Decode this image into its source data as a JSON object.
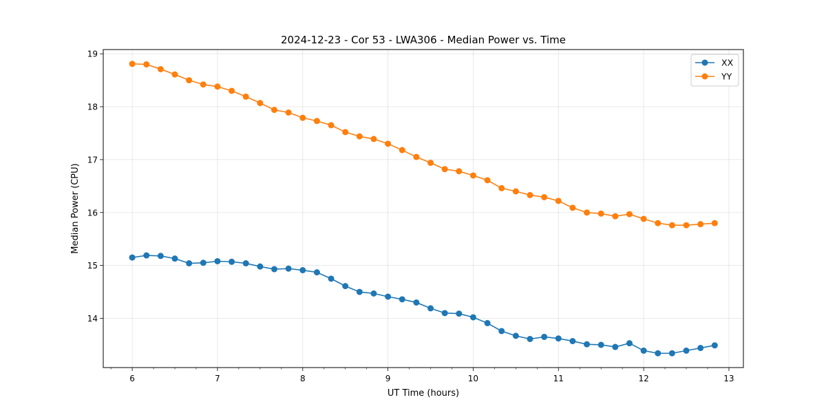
{
  "chart_data": {
    "type": "line",
    "title": "2024-12-23 - Cor 53 - LWA306 - Median Power vs. Time",
    "xlabel": "UT Time (hours)",
    "ylabel": "Median Power (CPU)",
    "xlim": [
      5.66,
      13.17
    ],
    "ylim": [
      13.07,
      19.08
    ],
    "xticks": [
      6,
      7,
      8,
      9,
      10,
      11,
      12,
      13
    ],
    "yticks": [
      14,
      15,
      16,
      17,
      18,
      19
    ],
    "grid": true,
    "legend_position": "top-right",
    "x": [
      6.0,
      6.1667,
      6.3333,
      6.5,
      6.6667,
      6.8333,
      7.0,
      7.1667,
      7.3333,
      7.5,
      7.6667,
      7.8333,
      8.0,
      8.1667,
      8.3333,
      8.5,
      8.6667,
      8.8333,
      9.0,
      9.1667,
      9.3333,
      9.5,
      9.6667,
      9.8333,
      10.0,
      10.1667,
      10.3333,
      10.5,
      10.6667,
      10.8333,
      11.0,
      11.1667,
      11.3333,
      11.5,
      11.6667,
      11.8333,
      12.0,
      12.1667,
      12.3333,
      12.5,
      12.6667,
      12.8333
    ],
    "series": [
      {
        "name": "XX",
        "color": "#1f77b4",
        "values": [
          15.15,
          15.19,
          15.18,
          15.13,
          15.04,
          15.05,
          15.08,
          15.07,
          15.04,
          14.98,
          14.93,
          14.94,
          14.91,
          14.87,
          14.75,
          14.61,
          14.5,
          14.47,
          14.41,
          14.36,
          14.3,
          14.19,
          14.1,
          14.09,
          14.02,
          13.91,
          13.76,
          13.67,
          13.61,
          13.65,
          13.62,
          13.57,
          13.51,
          13.5,
          13.46,
          13.53,
          13.39,
          13.34,
          13.34,
          13.39,
          13.44,
          13.49
        ]
      },
      {
        "name": "YY",
        "color": "#ff7f0e",
        "values": [
          18.81,
          18.8,
          18.71,
          18.61,
          18.5,
          18.42,
          18.38,
          18.3,
          18.19,
          18.07,
          17.94,
          17.89,
          17.79,
          17.73,
          17.65,
          17.52,
          17.44,
          17.39,
          17.3,
          17.18,
          17.05,
          16.94,
          16.82,
          16.78,
          16.7,
          16.61,
          16.46,
          16.4,
          16.33,
          16.29,
          16.22,
          16.09,
          16.0,
          15.98,
          15.93,
          15.97,
          15.88,
          15.8,
          15.76,
          15.76,
          15.78,
          15.8
        ]
      }
    ]
  }
}
